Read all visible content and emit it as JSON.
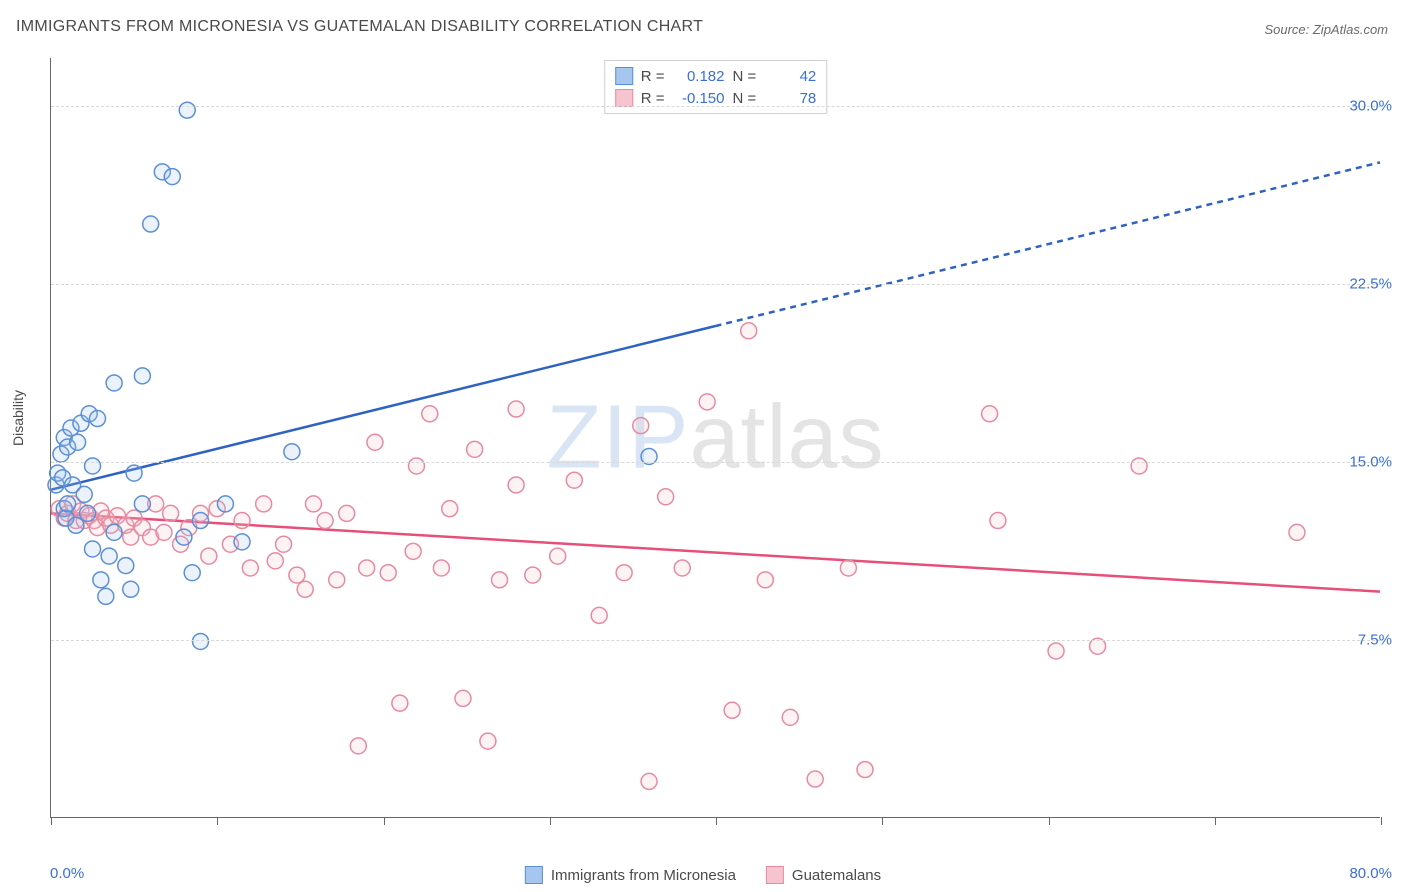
{
  "title": "IMMIGRANTS FROM MICRONESIA VS GUATEMALAN DISABILITY CORRELATION CHART",
  "source": "Source: ZipAtlas.com",
  "watermark": {
    "zip": "ZIP",
    "rest": "atlas"
  },
  "chart": {
    "type": "scatter",
    "background_color": "#ffffff",
    "grid_color": "#d8d8d8",
    "axis_color": "#666666",
    "ylabel": "Disability",
    "label_fontsize": 14,
    "xlim": [
      0,
      80
    ],
    "ylim": [
      0,
      32
    ],
    "x_ticks": [
      0,
      10,
      20,
      30,
      40,
      50,
      60,
      70,
      80
    ],
    "x_tick_labels_shown": {
      "0": "0.0%",
      "80": "80.0%"
    },
    "y_gridlines": [
      7.5,
      15.0,
      22.5,
      30.0
    ],
    "y_tick_labels": [
      "7.5%",
      "15.0%",
      "22.5%",
      "30.0%"
    ],
    "marker_radius": 8,
    "marker_stroke_width": 1.5,
    "marker_fill_opacity": 0.22,
    "trend_line_width": 2.5,
    "dash_pattern": "6 5",
    "series": [
      {
        "name": "Immigrants from Micronesia",
        "fill_color": "#a6c6ef",
        "stroke_color": "#5b8fd6",
        "trend_color": "#2f63c2",
        "R": "0.182",
        "N": "42",
        "trend": {
          "x1": 0,
          "y1": 13.8,
          "x2_solid": 40,
          "y2_solid": 20.7,
          "x2": 80,
          "y2": 27.6
        },
        "points": [
          [
            0.3,
            14.0
          ],
          [
            0.4,
            14.5
          ],
          [
            0.6,
            15.3
          ],
          [
            0.7,
            14.3
          ],
          [
            0.8,
            13.0
          ],
          [
            0.8,
            16.0
          ],
          [
            0.9,
            12.6
          ],
          [
            1.0,
            13.2
          ],
          [
            1.0,
            15.6
          ],
          [
            1.2,
            16.4
          ],
          [
            1.3,
            14.0
          ],
          [
            1.5,
            12.3
          ],
          [
            1.6,
            15.8
          ],
          [
            1.8,
            16.6
          ],
          [
            2.0,
            13.6
          ],
          [
            2.2,
            12.8
          ],
          [
            2.3,
            17.0
          ],
          [
            2.5,
            11.3
          ],
          [
            2.5,
            14.8
          ],
          [
            2.8,
            16.8
          ],
          [
            3.0,
            10.0
          ],
          [
            3.3,
            9.3
          ],
          [
            3.5,
            11.0
          ],
          [
            3.8,
            18.3
          ],
          [
            3.8,
            12.0
          ],
          [
            4.5,
            10.6
          ],
          [
            4.8,
            9.6
          ],
          [
            5.0,
            14.5
          ],
          [
            5.5,
            13.2
          ],
          [
            5.5,
            18.6
          ],
          [
            6.0,
            25.0
          ],
          [
            6.7,
            27.2
          ],
          [
            7.3,
            27.0
          ],
          [
            8.0,
            11.8
          ],
          [
            8.2,
            29.8
          ],
          [
            8.5,
            10.3
          ],
          [
            9.0,
            12.5
          ],
          [
            9.0,
            7.4
          ],
          [
            10.5,
            13.2
          ],
          [
            11.5,
            11.6
          ],
          [
            14.5,
            15.4
          ],
          [
            36.0,
            15.2
          ]
        ]
      },
      {
        "name": "Guatemalans",
        "fill_color": "#f6c4cf",
        "stroke_color": "#e78aa0",
        "trend_color": "#e64f7a",
        "R": "-0.150",
        "N": "78",
        "trend": {
          "x1": 0,
          "y1": 12.8,
          "x2_solid": 80,
          "y2_solid": 9.5,
          "x2": 80,
          "y2": 9.5
        },
        "points": [
          [
            0.5,
            13.0
          ],
          [
            0.8,
            12.6
          ],
          [
            1.0,
            12.8
          ],
          [
            1.3,
            13.2
          ],
          [
            1.5,
            12.5
          ],
          [
            1.8,
            12.9
          ],
          [
            2.0,
            12.5
          ],
          [
            2.3,
            12.7
          ],
          [
            2.6,
            12.5
          ],
          [
            2.8,
            12.2
          ],
          [
            3.0,
            12.9
          ],
          [
            3.3,
            12.6
          ],
          [
            3.6,
            12.3
          ],
          [
            4.0,
            12.7
          ],
          [
            4.5,
            12.3
          ],
          [
            4.8,
            11.8
          ],
          [
            5.0,
            12.6
          ],
          [
            5.5,
            12.2
          ],
          [
            6.0,
            11.8
          ],
          [
            6.3,
            13.2
          ],
          [
            6.8,
            12.0
          ],
          [
            7.2,
            12.8
          ],
          [
            7.8,
            11.5
          ],
          [
            8.3,
            12.2
          ],
          [
            9.0,
            12.8
          ],
          [
            9.5,
            11.0
          ],
          [
            10.0,
            13.0
          ],
          [
            10.8,
            11.5
          ],
          [
            11.5,
            12.5
          ],
          [
            12.0,
            10.5
          ],
          [
            12.8,
            13.2
          ],
          [
            13.5,
            10.8
          ],
          [
            14.0,
            11.5
          ],
          [
            14.8,
            10.2
          ],
          [
            15.3,
            9.6
          ],
          [
            15.8,
            13.2
          ],
          [
            16.5,
            12.5
          ],
          [
            17.2,
            10.0
          ],
          [
            17.8,
            12.8
          ],
          [
            18.5,
            3.0
          ],
          [
            19.0,
            10.5
          ],
          [
            19.5,
            15.8
          ],
          [
            20.3,
            10.3
          ],
          [
            21.0,
            4.8
          ],
          [
            21.8,
            11.2
          ],
          [
            22.0,
            14.8
          ],
          [
            22.8,
            17.0
          ],
          [
            23.5,
            10.5
          ],
          [
            24.0,
            13.0
          ],
          [
            24.8,
            5.0
          ],
          [
            25.5,
            15.5
          ],
          [
            26.3,
            3.2
          ],
          [
            27.0,
            10.0
          ],
          [
            28.0,
            17.2
          ],
          [
            28.0,
            14.0
          ],
          [
            29.0,
            10.2
          ],
          [
            30.5,
            11.0
          ],
          [
            31.5,
            14.2
          ],
          [
            33.0,
            8.5
          ],
          [
            34.5,
            10.3
          ],
          [
            35.5,
            16.5
          ],
          [
            36.0,
            1.5
          ],
          [
            37.0,
            13.5
          ],
          [
            38.0,
            10.5
          ],
          [
            39.5,
            17.5
          ],
          [
            41.0,
            4.5
          ],
          [
            42.0,
            20.5
          ],
          [
            43.0,
            10.0
          ],
          [
            44.5,
            4.2
          ],
          [
            46.0,
            1.6
          ],
          [
            48.0,
            10.5
          ],
          [
            49.0,
            2.0
          ],
          [
            56.5,
            17.0
          ],
          [
            57.0,
            12.5
          ],
          [
            60.5,
            7.0
          ],
          [
            63.0,
            7.2
          ],
          [
            65.5,
            14.8
          ],
          [
            75.0,
            12.0
          ]
        ]
      }
    ]
  },
  "stats_legend": {
    "r_label": "R =",
    "n_label": "N ="
  },
  "tick_label_color": "#3a6fd8"
}
